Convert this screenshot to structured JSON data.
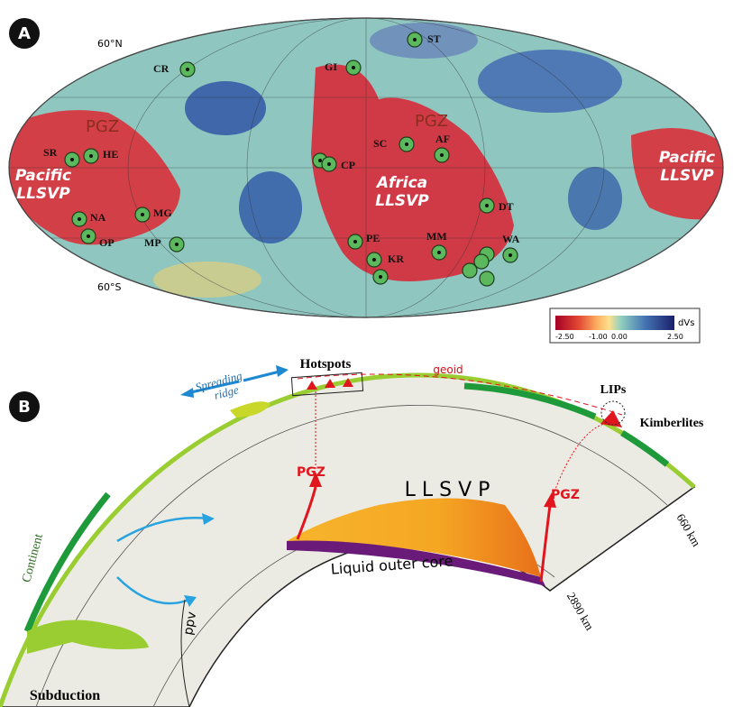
{
  "panel_a": {
    "label": "A",
    "lat_labels": [
      "60°N",
      "60°S"
    ],
    "pgz_labels": [
      "PGZ",
      "PGZ"
    ],
    "llsvp_labels": [
      {
        "line1": "Pacific",
        "line2": "LLSVP"
      },
      {
        "line1": "Africa",
        "line2": "LLSVP"
      },
      {
        "line1": "Pacific",
        "line2": "LLSVP"
      }
    ],
    "hotspots": [
      "CR",
      "ST",
      "GI",
      "SR",
      "HE",
      "SC",
      "AF",
      "CP",
      "DT",
      "NA",
      "MG",
      "OP",
      "MP",
      "PE",
      "MM",
      "WA",
      "KR"
    ],
    "colorbar": {
      "title": "dVs",
      "ticks": [
        "-2.50",
        "-1.00",
        "0.00",
        "2.50"
      ]
    }
  },
  "panel_b": {
    "label": "B",
    "hotspots": "Hotspots",
    "spreading_ridge": [
      "Spreading",
      "ridge"
    ],
    "geoid": "geoid",
    "lips": "LIPs",
    "kimberlites": "Kimberlites",
    "pgz_labels": [
      "PGZ",
      "PGZ"
    ],
    "llsvp": "L L S V P",
    "depth_labels": [
      "660 km",
      "2890 km"
    ],
    "continent": "Continent",
    "outer_core": "Liquid outer core",
    "ppv": "ppv",
    "subduction": "Subduction"
  }
}
